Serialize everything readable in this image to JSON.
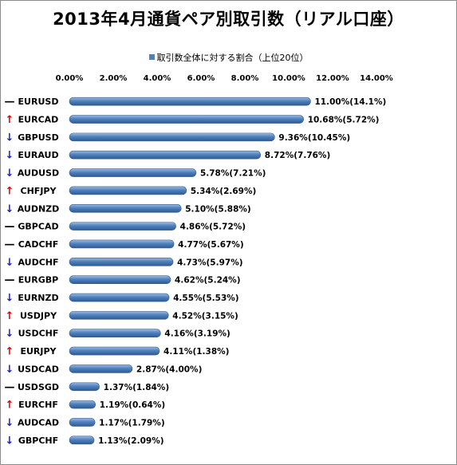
{
  "chart_data": {
    "type": "bar",
    "orientation": "horizontal",
    "title": "2013年4月通貨ペア別取引数（リアル口座）",
    "legend": {
      "label": "取引数全体に対する割合（上位20位）",
      "position": "top",
      "color": "#4f81bd"
    },
    "xlim": [
      0,
      14
    ],
    "x_ticks": [
      "0.00%",
      "2.00%",
      "4.00%",
      "6.00%",
      "8.00%",
      "10.00%",
      "12.00%",
      "14.00%"
    ],
    "grid": false,
    "categories": [
      "EURUSD",
      "EURCAD",
      "GBPUSD",
      "EURAUD",
      "AUDUSD",
      "CHFJPY",
      "AUDNZD",
      "GBPCAD",
      "CADCHF",
      "AUDCHF",
      "EURGBP",
      "EURNZD",
      "USDJPY",
      "USDCHF",
      "EURJPY",
      "USDCAD",
      "USDSGD",
      "EURCHF",
      "AUDCAD",
      "GBPCHF"
    ],
    "values": [
      11.0,
      10.68,
      9.36,
      8.72,
      5.78,
      5.34,
      5.1,
      4.86,
      4.77,
      4.73,
      4.62,
      4.55,
      4.52,
      4.16,
      4.11,
      2.87,
      1.37,
      1.19,
      1.17,
      1.13
    ],
    "data_labels": [
      "11.00%(14.1%)",
      "10.68%(5.72%)",
      "9.36%(10.45%)",
      "8.72%(7.76%)",
      "5.78%(7.21%)",
      "5.34%(2.69%)",
      "5.10%(5.88%)",
      "4.86%(5.72%)",
      "4.77%(5.67%)",
      "4.73%(5.97%)",
      "4.62%(5.24%)",
      "4.55%(5.53%)",
      "4.52%(3.15%)",
      "4.16%(3.19%)",
      "4.11%(1.38%)",
      "2.87%(4.00%)",
      "1.37%(1.84%)",
      "1.19%(0.64%)",
      "1.17%(1.79%)",
      "1.13%(2.09%)"
    ],
    "trend_markers": [
      "—",
      "↑",
      "↓",
      "↓",
      "↓",
      "↑",
      "↓",
      "—",
      "—",
      "↓",
      "—",
      "↓",
      "↑",
      "↓",
      "↑",
      "↓",
      "—",
      "↑",
      "↓",
      "↓"
    ],
    "trend_colors": {
      "—": "#000000",
      "↑": "#e00000",
      "↓": "#1f1fcf"
    },
    "bar_color": "#4f81bd"
  }
}
